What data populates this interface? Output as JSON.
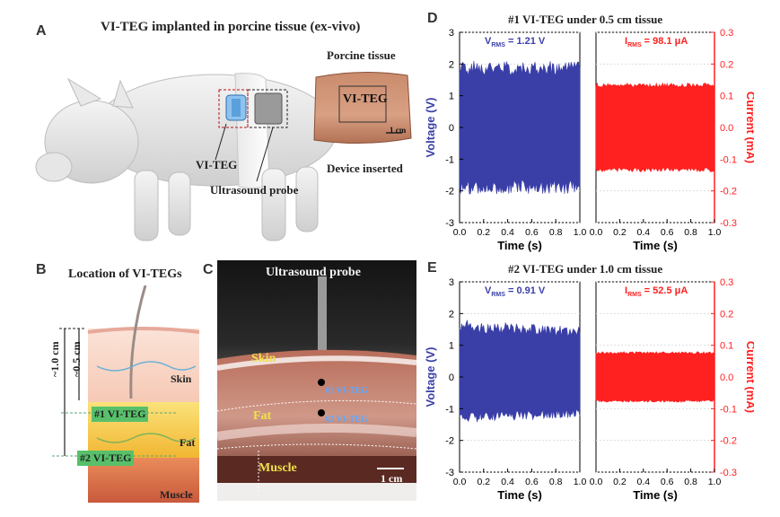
{
  "panels": {
    "A": {
      "letter": "A",
      "title": "VI-TEG implanted in porcine tissue (ex-vivo)",
      "device_label": "VI-TEG",
      "probe_label": "Ultrasound probe",
      "tissue_title": "Porcine tissue",
      "tissue_box_label": "VI-TEG",
      "scale_label": "1 cm",
      "inserted_label": "Device inserted"
    },
    "B": {
      "letter": "B",
      "title": "Location of VI-TEGs",
      "depth_outer": "~1.0 cm",
      "depth_inner": "~0.5 cm",
      "skin": "Skin",
      "fat": "Fat",
      "muscle": "Muscle",
      "teg1": "#1 VI-TEG",
      "teg2": "#2 VI-TEG"
    },
    "C": {
      "letter": "C",
      "probe_label": "Ultrasound probe",
      "skin": "Skin",
      "fat": "Fat",
      "muscle": "Muscle",
      "teg1": "#1 VI-TEG",
      "teg2": "#2 VI-TEG",
      "scale_label": "1 cm"
    },
    "D": {
      "letter": "D",
      "title": "#1 VI-TEG under 0.5 cm tissue",
      "vrms_label": "V",
      "vrms_sub": "RMS",
      "vrms_value": " = 1.21 V",
      "irms_label": "I",
      "irms_sub": "RMS",
      "irms_value": " = 98.1 μA"
    },
    "E": {
      "letter": "E",
      "title": "#2 VI-TEG under 1.0 cm tissue",
      "vrms_label": "V",
      "vrms_sub": "RMS",
      "vrms_value": " = 0.91 V",
      "irms_label": "I",
      "irms_sub": "RMS",
      "irms_value": " = 52.5 μA"
    }
  },
  "colors": {
    "voltage": "#3a3fa8",
    "current": "#ff2020",
    "axis_voltage": "#3a3fa8",
    "axis_current": "#ff2020"
  },
  "chart_data": [
    {
      "id": "D",
      "type": "area",
      "title": "#1 VI-TEG under 0.5 cm tissue",
      "xlabel_left": "Time (s)",
      "xlabel_right": "Time (s)",
      "ylabel_left": "Voltage (V)",
      "ylabel_right": "Current (mA)",
      "x_ticks": [
        "0.0",
        "0.2",
        "0.4",
        "0.6",
        "0.8",
        "1.0"
      ],
      "xlim": [
        0,
        1
      ],
      "y_left_ticks": [
        "-3",
        "-2",
        "-1",
        "0",
        "1",
        "2",
        "3"
      ],
      "ylim_left": [
        -3,
        3
      ],
      "y_right_ticks": [
        "-0.3",
        "-0.2",
        "-0.1",
        "0.0",
        "0.1",
        "0.2",
        "0.3"
      ],
      "ylim_right": [
        -0.3,
        0.3
      ],
      "series": [
        {
          "name": "Voltage",
          "axis": "left",
          "envelope_max": 2.1,
          "envelope_min": -2.1,
          "rms": 1.21
        },
        {
          "name": "Current",
          "axis": "right",
          "envelope_max": 0.14,
          "envelope_min": -0.14,
          "rms": 0.0981
        }
      ]
    },
    {
      "id": "E",
      "type": "area",
      "title": "#2 VI-TEG under 1.0 cm tissue",
      "xlabel_left": "Time (s)",
      "xlabel_right": "Time (s)",
      "ylabel_left": "Voltage (V)",
      "ylabel_right": "Current (mA)",
      "x_ticks": [
        "0.0",
        "0.2",
        "0.4",
        "0.6",
        "0.8",
        "1.0"
      ],
      "xlim": [
        0,
        1
      ],
      "y_left_ticks": [
        "-3",
        "-2",
        "-1",
        "0",
        "1",
        "2",
        "3"
      ],
      "ylim_left": [
        -3,
        3
      ],
      "y_right_ticks": [
        "-0.3",
        "-0.2",
        "-0.1",
        "0.0",
        "0.1",
        "0.2",
        "0.3"
      ],
      "ylim_right": [
        -0.3,
        0.3
      ],
      "series": [
        {
          "name": "Voltage",
          "axis": "left",
          "envelope_max": 1.8,
          "envelope_min": -1.45,
          "rms": 0.91
        },
        {
          "name": "Current",
          "axis": "right",
          "envelope_max": 0.08,
          "envelope_min": -0.08,
          "rms": 0.0525
        }
      ]
    }
  ]
}
